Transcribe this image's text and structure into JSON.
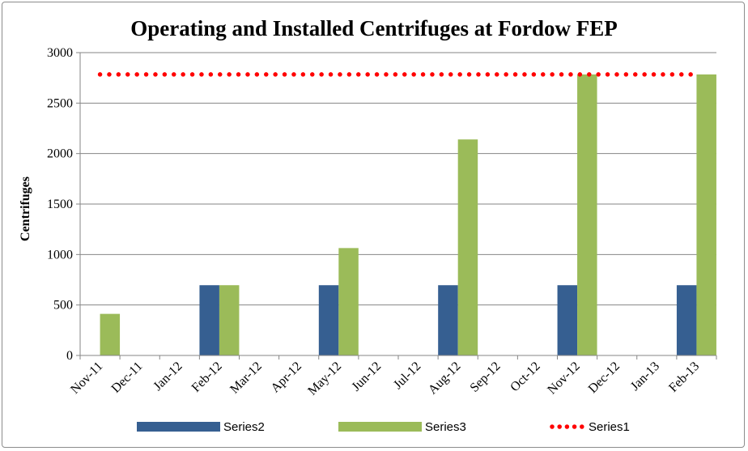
{
  "chart_data": {
    "type": "bar",
    "title": "Operating and Installed Centrifuges at Fordow FEP",
    "xlabel": "",
    "ylabel": "Centrifuges",
    "ylim": [
      0,
      3000
    ],
    "yticks": [
      0,
      500,
      1000,
      1500,
      2000,
      2500,
      3000
    ],
    "grid": true,
    "legend_position": "bottom",
    "categories": [
      "Nov-11",
      "Dec-11",
      "Jan-12",
      "Feb-12",
      "Mar-12",
      "Apr-12",
      "May-12",
      "Jun-12",
      "Jul-12",
      "Aug-12",
      "Sep-12",
      "Oct-12",
      "Nov-12",
      "Dec-12",
      "Jan-13",
      "Feb-13"
    ],
    "series": [
      {
        "name": "Series2",
        "kind": "bar",
        "color": "#365f91",
        "values": [
          0,
          null,
          null,
          696,
          null,
          null,
          696,
          null,
          null,
          696,
          null,
          null,
          696,
          null,
          null,
          696
        ]
      },
      {
        "name": "Series3",
        "kind": "bar",
        "color": "#9bbb59",
        "values": [
          412,
          null,
          null,
          696,
          null,
          null,
          1064,
          null,
          null,
          2140,
          null,
          null,
          2784,
          null,
          null,
          2784
        ]
      },
      {
        "name": "Series1",
        "kind": "line",
        "style": "dotted",
        "color": "#ff0000",
        "values": [
          2784,
          2784,
          2784,
          2784,
          2784,
          2784,
          2784,
          2784,
          2784,
          2784,
          2784,
          2784,
          2784,
          2784,
          2784,
          2784
        ]
      }
    ]
  }
}
